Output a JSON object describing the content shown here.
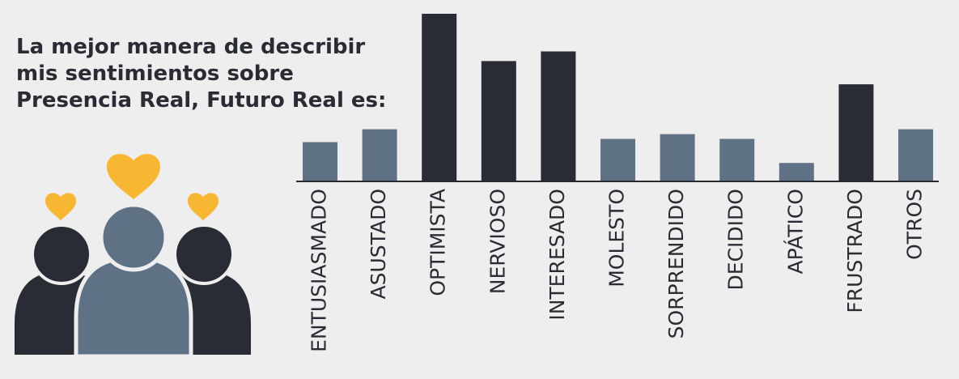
{
  "title": "La mejor manera de describir\nmis sentimientos sobre\nPresencia Real, Futuro Real es:",
  "icons": {
    "people": "people-group-icon",
    "hearts": "heart-icon"
  },
  "colors": {
    "background": "#efeeee",
    "highlight": "#2a2c35",
    "normal": "#5f7285",
    "heart": "#f7b733",
    "axis": "#2a2c35",
    "label": "#2a2c35"
  },
  "chart_data": {
    "type": "bar",
    "categories": [
      "ENTUSIASMADO",
      "ASUSTADO",
      "OPTIMISTA",
      "NERVIOSO",
      "INTERESADO",
      "MOLESTO",
      "SORPRENDIDO",
      "DECIDIDO",
      "APÁTICO",
      "FRUSTRADO",
      "OTROS"
    ],
    "values": [
      48,
      64,
      208,
      149,
      161,
      52,
      58,
      52,
      22,
      120,
      64
    ],
    "highlighted": [
      false,
      false,
      true,
      true,
      true,
      false,
      false,
      false,
      false,
      true,
      false
    ],
    "ylim": [
      0,
      210
    ],
    "title": "",
    "xlabel": "",
    "ylabel": "",
    "grid": false,
    "legend": "none"
  }
}
